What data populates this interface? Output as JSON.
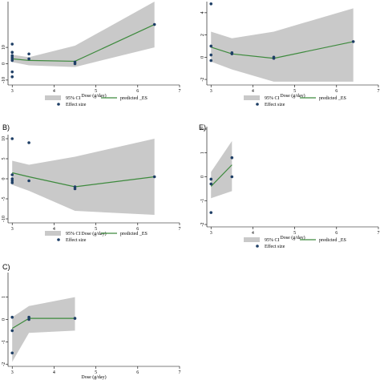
{
  "colors": {
    "ci": "#c9c9c9",
    "predicted": "#3d8a3d",
    "points": "#1f3f66"
  },
  "legend": {
    "ci_label": "95% CI",
    "pred_label": "predicted _ES",
    "eff_label": "Effect size"
  },
  "chart_data": [
    {
      "panel_label": "",
      "type": "line",
      "xlabel": "Dose (g/day)",
      "xlim": [
        2.9,
        7
      ],
      "xticks": [
        "3",
        "4",
        "5",
        "6",
        "7"
      ],
      "ylim": [
        -13,
        38
      ],
      "yticks": [
        "-10",
        "0",
        "10"
      ],
      "ytick_values": [
        -10,
        0,
        10
      ],
      "legend_shown": true,
      "points": [
        [
          3,
          12
        ],
        [
          3,
          7
        ],
        [
          3,
          5
        ],
        [
          3,
          4
        ],
        [
          3,
          3
        ],
        [
          3,
          2
        ],
        [
          3,
          -5
        ],
        [
          3,
          -8
        ],
        [
          3.4,
          6
        ],
        [
          3.4,
          3
        ],
        [
          4.5,
          1
        ],
        [
          4.5,
          0
        ],
        [
          6.4,
          24
        ]
      ],
      "predicted": [
        [
          3,
          3
        ],
        [
          3.4,
          2
        ],
        [
          4.5,
          1.5
        ],
        [
          6.4,
          24
        ]
      ],
      "ci_upper": [
        [
          3,
          5.5
        ],
        [
          3.4,
          4
        ],
        [
          4.5,
          11
        ],
        [
          6.4,
          38
        ]
      ],
      "ci_lower": [
        [
          3,
          1
        ],
        [
          3.4,
          -1
        ],
        [
          4.5,
          -2
        ],
        [
          6.4,
          10
        ]
      ]
    },
    {
      "panel_label": "",
      "type": "line",
      "xlabel": "Dose (g/day)",
      "xlim": [
        2.9,
        7
      ],
      "xticks": [
        "3",
        "4",
        "5",
        "6",
        "7"
      ],
      "ylim": [
        -2.5,
        5
      ],
      "yticks": [
        "-2",
        "0",
        "2",
        "4"
      ],
      "ytick_values": [
        -2,
        0,
        2,
        4
      ],
      "legend_shown": true,
      "points": [
        [
          3,
          4.8
        ],
        [
          3,
          1
        ],
        [
          3,
          0.2
        ],
        [
          3,
          -0.3
        ],
        [
          3.5,
          0.4
        ],
        [
          3.5,
          0.3
        ],
        [
          4.5,
          0
        ],
        [
          4.5,
          -0.1
        ],
        [
          6.4,
          1.4
        ]
      ],
      "predicted": [
        [
          3,
          0.9
        ],
        [
          3.5,
          0.3
        ],
        [
          4.5,
          -0.1
        ],
        [
          6.4,
          1.4
        ]
      ],
      "ci_upper": [
        [
          3,
          2.3
        ],
        [
          3.5,
          1.7
        ],
        [
          4.5,
          2.3
        ],
        [
          6.4,
          4.4
        ]
      ],
      "ci_lower": [
        [
          3,
          -0.4
        ],
        [
          3.5,
          -1.1
        ],
        [
          4.5,
          -2.2
        ],
        [
          6.4,
          -2.2
        ]
      ]
    },
    {
      "panel_label": "B)",
      "type": "line",
      "xlabel": "Dose (g/day)",
      "xlim": [
        2.9,
        7
      ],
      "xticks": [
        "3",
        "4",
        "5",
        "6",
        "7"
      ],
      "ylim": [
        -11,
        11
      ],
      "yticks": [
        "-10",
        "-5",
        "0",
        "5",
        "10"
      ],
      "ytick_values": [
        -10,
        -5,
        0,
        5,
        10
      ],
      "legend_shown": true,
      "points": [
        [
          3,
          10
        ],
        [
          3,
          1
        ],
        [
          3,
          0
        ],
        [
          3,
          -0.5
        ],
        [
          3,
          -1
        ],
        [
          3.4,
          9
        ],
        [
          3.4,
          -0.5
        ],
        [
          4.5,
          -2
        ],
        [
          4.5,
          -2.5
        ],
        [
          6.4,
          0.5
        ]
      ],
      "predicted": [
        [
          3,
          1.5
        ],
        [
          3.4,
          0.5
        ],
        [
          4.5,
          -2
        ],
        [
          6.4,
          0.5
        ]
      ],
      "ci_upper": [
        [
          3,
          4.5
        ],
        [
          3.4,
          3.5
        ],
        [
          4.5,
          5.5
        ],
        [
          6.4,
          10
        ]
      ],
      "ci_lower": [
        [
          3,
          -1.5
        ],
        [
          3.4,
          -3
        ],
        [
          4.5,
          -8
        ],
        [
          6.4,
          -9
        ]
      ]
    },
    {
      "panel_label": "E)",
      "type": "line",
      "xlabel": "Dose (g/day)",
      "xlim": [
        2.9,
        7
      ],
      "xticks": [
        "3",
        "4",
        "5",
        "6",
        "7"
      ],
      "ylim": [
        -2.1,
        2.1
      ],
      "yticks": [
        "-2",
        "-1",
        "0",
        "1",
        "2"
      ],
      "ytick_values": [
        -2,
        -1,
        0,
        1,
        2
      ],
      "legend_shown": true,
      "points": [
        [
          3,
          -0.1
        ],
        [
          3,
          -0.3
        ],
        [
          3,
          -1.5
        ],
        [
          3.5,
          0.8
        ],
        [
          3.5,
          0
        ]
      ],
      "predicted": [
        [
          3,
          -0.4
        ],
        [
          3.5,
          0.5
        ]
      ],
      "ci_upper": [
        [
          3,
          0.2
        ],
        [
          3.5,
          1.5
        ]
      ],
      "ci_lower": [
        [
          3,
          -0.9
        ],
        [
          3.5,
          -0.6
        ]
      ]
    },
    {
      "panel_label": "C)",
      "type": "line",
      "xlabel": "Dose (g/day)",
      "xlim": [
        2.9,
        7
      ],
      "xticks": [
        "3",
        "4",
        "5",
        "6",
        "7"
      ],
      "ylim": [
        -2.1,
        2.1
      ],
      "yticks": [
        "-2",
        "-1",
        "0",
        "1"
      ],
      "ytick_values": [
        -2,
        -1,
        0,
        1
      ],
      "legend_shown": false,
      "points": [
        [
          3,
          0.1
        ],
        [
          3,
          -0.5
        ],
        [
          3,
          -1.5
        ],
        [
          3.4,
          0.1
        ],
        [
          3.4,
          0
        ],
        [
          4.5,
          0.05
        ]
      ],
      "predicted": [
        [
          3,
          -0.4
        ],
        [
          3.4,
          0.05
        ],
        [
          4.5,
          0.05
        ]
      ],
      "ci_upper": [
        [
          3,
          0.1
        ],
        [
          3.4,
          0.6
        ],
        [
          4.5,
          1
        ]
      ],
      "ci_lower": [
        [
          3,
          -1.9
        ],
        [
          3.4,
          -0.6
        ],
        [
          4.5,
          -0.5
        ]
      ]
    }
  ]
}
